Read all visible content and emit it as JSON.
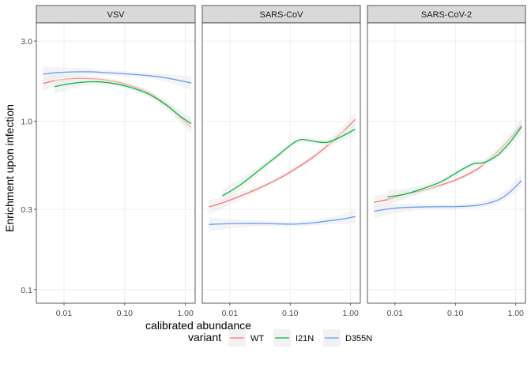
{
  "chart_data": {
    "type": "line",
    "facet_titles": [
      "VSV",
      "SARS-CoV",
      "SARS-CoV-2"
    ],
    "xlabel": "calibrated abundance",
    "ylabel": "Enrichment upon infection",
    "x_scale": "log10",
    "y_scale": "log10",
    "xlim": [
      0.0035,
      1.45
    ],
    "ylim": [
      0.083,
      3.85
    ],
    "x_ticks": [
      0.01,
      0.1,
      1.0
    ],
    "x_tick_labels": [
      "0.01",
      "0.10",
      "1.00"
    ],
    "y_ticks": [
      0.1,
      0.3,
      1.0,
      3.0
    ],
    "y_tick_labels": [
      "0.1",
      "0.3",
      "1.0",
      "3.0"
    ],
    "grid": true,
    "legend": {
      "title": "variant",
      "placement": "bottom",
      "entries": [
        "WT",
        "I21N",
        "D355N"
      ]
    },
    "series_colors": {
      "WT": "#F8766D",
      "I21N": "#00BA38",
      "D355N": "#619CFF"
    },
    "ribbon_color": "#ebebeb",
    "facets": [
      {
        "title": "VSV",
        "series": [
          {
            "name": "WT",
            "x": [
              0.0045,
              0.008,
              0.015,
              0.03,
              0.06,
              0.12,
              0.25,
              0.5,
              0.8,
              1.25
            ],
            "y": [
              1.68,
              1.76,
              1.8,
              1.79,
              1.74,
              1.64,
              1.48,
              1.25,
              1.07,
              0.92
            ]
          },
          {
            "name": "I21N",
            "x": [
              0.007,
              0.012,
              0.02,
              0.035,
              0.06,
              0.12,
              0.25,
              0.5,
              0.8,
              1.25
            ],
            "y": [
              1.61,
              1.67,
              1.71,
              1.72,
              1.69,
              1.6,
              1.45,
              1.24,
              1.08,
              0.97
            ]
          },
          {
            "name": "D355N",
            "x": [
              0.0045,
              0.008,
              0.015,
              0.03,
              0.06,
              0.12,
              0.25,
              0.5,
              0.8,
              1.25
            ],
            "y": [
              1.91,
              1.95,
              1.97,
              1.97,
              1.94,
              1.91,
              1.87,
              1.81,
              1.75,
              1.69
            ]
          }
        ]
      },
      {
        "title": "SARS-CoV",
        "series": [
          {
            "name": "WT",
            "x": [
              0.0045,
              0.008,
              0.015,
              0.03,
              0.06,
              0.12,
              0.25,
              0.5,
              0.8,
              1.2
            ],
            "y": [
              0.31,
              0.33,
              0.36,
              0.4,
              0.45,
              0.52,
              0.62,
              0.76,
              0.89,
              1.03
            ]
          },
          {
            "name": "I21N",
            "x": [
              0.0075,
              0.015,
              0.03,
              0.06,
              0.1,
              0.15,
              0.25,
              0.4,
              0.6,
              0.9,
              1.2
            ],
            "y": [
              0.36,
              0.42,
              0.51,
              0.62,
              0.72,
              0.78,
              0.76,
              0.75,
              0.79,
              0.85,
              0.9
            ]
          },
          {
            "name": "D355N",
            "x": [
              0.0045,
              0.008,
              0.015,
              0.03,
              0.06,
              0.12,
              0.25,
              0.5,
              0.8,
              1.2
            ],
            "y": [
              0.244,
              0.246,
              0.247,
              0.247,
              0.246,
              0.245,
              0.25,
              0.258,
              0.264,
              0.272
            ]
          }
        ]
      },
      {
        "title": "SARS-CoV-2",
        "series": [
          {
            "name": "WT",
            "x": [
              0.0045,
              0.008,
              0.015,
              0.03,
              0.06,
              0.12,
              0.25,
              0.5,
              0.8,
              1.25
            ],
            "y": [
              0.33,
              0.345,
              0.37,
              0.39,
              0.42,
              0.46,
              0.53,
              0.66,
              0.79,
              0.95
            ]
          },
          {
            "name": "I21N",
            "x": [
              0.0075,
              0.015,
              0.03,
              0.06,
              0.12,
              0.2,
              0.3,
              0.5,
              0.8,
              1.25
            ],
            "y": [
              0.355,
              0.37,
              0.4,
              0.44,
              0.51,
              0.56,
              0.57,
              0.63,
              0.75,
              0.93
            ]
          },
          {
            "name": "D355N",
            "x": [
              0.0045,
              0.008,
              0.015,
              0.03,
              0.06,
              0.12,
              0.25,
              0.5,
              0.8,
              1.25
            ],
            "y": [
              0.292,
              0.302,
              0.308,
              0.31,
              0.311,
              0.312,
              0.318,
              0.34,
              0.38,
              0.445
            ]
          }
        ]
      }
    ]
  }
}
